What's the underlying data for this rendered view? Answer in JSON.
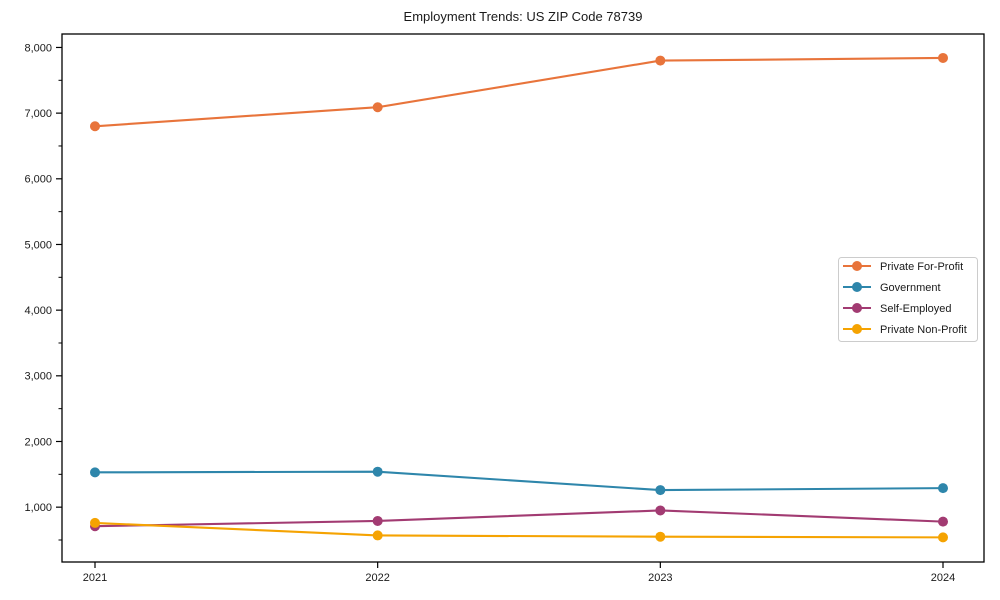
{
  "figure": {
    "background": "#ffffff",
    "frame_color": "#000000",
    "text_color": "#1a1a1a",
    "legend_border_color": "#cccccc"
  },
  "chart_data": {
    "type": "line",
    "title": "Employment Trends: US ZIP Code 78739",
    "xlabel": "",
    "ylabel": "",
    "x": [
      2021,
      2022,
      2023,
      2024
    ],
    "x_tick_labels": [
      "2021",
      "2022",
      "2023",
      "2024"
    ],
    "y_ticks": [
      1000,
      2000,
      3000,
      4000,
      5000,
      6000,
      7000,
      8000
    ],
    "y_tick_labels": [
      "1,000",
      "2,000",
      "3,000",
      "4,000",
      "5,000",
      "6,000",
      "7,000",
      "8,000"
    ],
    "y_minor_tick_step": 500,
    "ylim": [
      165,
      8205
    ],
    "grid": false,
    "legend_position": "center-right",
    "series": [
      {
        "name": "Private For-Profit",
        "color": "#E8743B",
        "values": [
          6800,
          7090,
          7800,
          7840
        ]
      },
      {
        "name": "Government",
        "color": "#2E86AB",
        "values": [
          1530,
          1540,
          1260,
          1290
        ]
      },
      {
        "name": "Self-Employed",
        "color": "#A23B72",
        "values": [
          710,
          790,
          950,
          780
        ]
      },
      {
        "name": "Private Non-Profit",
        "color": "#F5A302",
        "values": [
          760,
          570,
          550,
          540
        ]
      }
    ]
  }
}
